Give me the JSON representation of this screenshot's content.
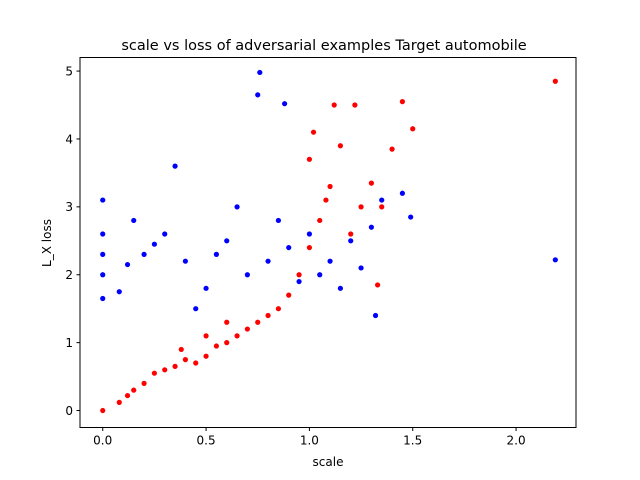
{
  "chart_data": {
    "type": "scatter",
    "title": "scale vs loss of adversarial examples Target automobile",
    "xlabel": "scale",
    "ylabel": "L_X loss",
    "xlim": [
      -0.11,
      2.29
    ],
    "ylim": [
      -0.25,
      5.2
    ],
    "xticks": [
      0.0,
      0.5,
      1.0,
      1.5,
      2.0
    ],
    "xtick_labels": [
      "0.0",
      "0.5",
      "1.0",
      "1.5",
      "2.0"
    ],
    "yticks": [
      0,
      1,
      2,
      3,
      4,
      5
    ],
    "ytick_labels": [
      "0",
      "1",
      "2",
      "3",
      "4",
      "5"
    ],
    "grid": false,
    "legend": false,
    "series": [
      {
        "color": "#ff0000",
        "points": [
          [
            0.0,
            0.0
          ],
          [
            0.08,
            0.12
          ],
          [
            0.12,
            0.22
          ],
          [
            0.15,
            0.3
          ],
          [
            0.2,
            0.4
          ],
          [
            0.25,
            0.55
          ],
          [
            0.3,
            0.6
          ],
          [
            0.35,
            0.65
          ],
          [
            0.38,
            0.9
          ],
          [
            0.4,
            0.75
          ],
          [
            0.45,
            0.7
          ],
          [
            0.5,
            0.8
          ],
          [
            0.5,
            1.1
          ],
          [
            0.55,
            0.95
          ],
          [
            0.6,
            1.0
          ],
          [
            0.6,
            1.3
          ],
          [
            0.65,
            1.1
          ],
          [
            0.7,
            1.2
          ],
          [
            0.75,
            1.3
          ],
          [
            0.8,
            1.4
          ],
          [
            0.85,
            1.5
          ],
          [
            0.9,
            1.7
          ],
          [
            0.95,
            2.0
          ],
          [
            1.0,
            2.4
          ],
          [
            1.0,
            3.7
          ],
          [
            1.02,
            4.1
          ],
          [
            1.05,
            2.8
          ],
          [
            1.08,
            3.1
          ],
          [
            1.1,
            3.3
          ],
          [
            1.12,
            4.5
          ],
          [
            1.15,
            3.9
          ],
          [
            1.2,
            2.6
          ],
          [
            1.22,
            4.5
          ],
          [
            1.25,
            3.0
          ],
          [
            1.3,
            3.35
          ],
          [
            1.33,
            1.85
          ],
          [
            1.35,
            3.0
          ],
          [
            1.4,
            3.85
          ],
          [
            1.45,
            4.55
          ],
          [
            1.5,
            4.15
          ],
          [
            2.19,
            4.85
          ]
        ]
      },
      {
        "color": "#0000ff",
        "points": [
          [
            0.0,
            1.65
          ],
          [
            0.0,
            2.0
          ],
          [
            0.0,
            2.3
          ],
          [
            0.0,
            2.6
          ],
          [
            0.0,
            3.1
          ],
          [
            0.08,
            1.75
          ],
          [
            0.12,
            2.15
          ],
          [
            0.15,
            2.8
          ],
          [
            0.2,
            2.3
          ],
          [
            0.25,
            2.45
          ],
          [
            0.3,
            2.6
          ],
          [
            0.35,
            3.6
          ],
          [
            0.4,
            2.2
          ],
          [
            0.45,
            1.5
          ],
          [
            0.5,
            1.8
          ],
          [
            0.55,
            2.3
          ],
          [
            0.6,
            2.5
          ],
          [
            0.65,
            3.0
          ],
          [
            0.7,
            2.0
          ],
          [
            0.75,
            4.65
          ],
          [
            0.76,
            4.98
          ],
          [
            0.8,
            2.2
          ],
          [
            0.85,
            2.8
          ],
          [
            0.88,
            4.52
          ],
          [
            0.9,
            2.4
          ],
          [
            0.95,
            1.9
          ],
          [
            1.0,
            2.6
          ],
          [
            1.05,
            2.0
          ],
          [
            1.1,
            2.2
          ],
          [
            1.15,
            1.8
          ],
          [
            1.2,
            2.5
          ],
          [
            1.25,
            2.1
          ],
          [
            1.3,
            2.7
          ],
          [
            1.32,
            1.4
          ],
          [
            1.35,
            3.1
          ],
          [
            1.45,
            3.2
          ],
          [
            1.49,
            2.85
          ],
          [
            2.19,
            2.22
          ]
        ]
      }
    ]
  }
}
